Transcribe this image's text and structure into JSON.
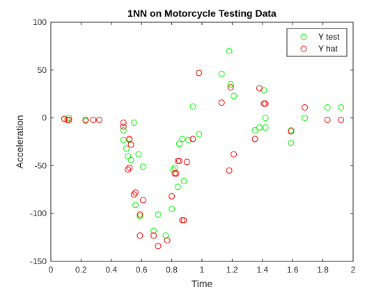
{
  "chart_data": {
    "type": "scatter",
    "title": "1NN on Motorcycle Testing Data",
    "xlabel": "Time",
    "ylabel": "Acceleration",
    "xlim": [
      0,
      2
    ],
    "ylim": [
      -150,
      100
    ],
    "xticks": [
      0,
      0.2,
      0.4,
      0.6,
      0.8,
      1,
      1.2,
      1.4,
      1.6,
      1.8,
      2
    ],
    "xtick_labels": [
      "0",
      "0.2",
      "0.4",
      "0.6",
      "0.8",
      "1",
      "1.2",
      "1.4",
      "1.6",
      "1.8",
      "2"
    ],
    "yticks": [
      -150,
      -100,
      -50,
      0,
      50,
      100
    ],
    "ytick_labels": [
      "-150",
      "-100",
      "-50",
      "0",
      "50",
      "100"
    ],
    "grid": false,
    "legend": "top-right",
    "series": [
      {
        "name": "Y test",
        "color": "#00ff00",
        "marker": "circle-open",
        "points": [
          [
            0.09,
            -1
          ],
          [
            0.12,
            0
          ],
          [
            0.23,
            -3
          ],
          [
            0.48,
            -13
          ],
          [
            0.48,
            -23
          ],
          [
            0.5,
            -32
          ],
          [
            0.51,
            -40
          ],
          [
            0.52,
            -23
          ],
          [
            0.53,
            -44
          ],
          [
            0.55,
            -5
          ],
          [
            0.56,
            -91
          ],
          [
            0.58,
            -38
          ],
          [
            0.59,
            -103
          ],
          [
            0.61,
            -51
          ],
          [
            0.68,
            -118
          ],
          [
            0.71,
            -101
          ],
          [
            0.76,
            -123
          ],
          [
            0.8,
            -95
          ],
          [
            0.81,
            -54
          ],
          [
            0.82,
            -52
          ],
          [
            0.84,
            -72
          ],
          [
            0.85,
            -27
          ],
          [
            0.87,
            -22
          ],
          [
            0.88,
            -66
          ],
          [
            0.91,
            -23
          ],
          [
            0.94,
            12
          ],
          [
            0.98,
            -17
          ],
          [
            1.13,
            46
          ],
          [
            1.18,
            70
          ],
          [
            1.19,
            35
          ],
          [
            1.21,
            23
          ],
          [
            1.35,
            -13
          ],
          [
            1.38,
            -10
          ],
          [
            1.41,
            29
          ],
          [
            1.42,
            0
          ],
          [
            1.42,
            -10
          ],
          [
            1.59,
            -13
          ],
          [
            1.59,
            -26
          ],
          [
            1.68,
            0
          ],
          [
            1.83,
            11
          ],
          [
            1.92,
            11
          ]
        ]
      },
      {
        "name": "Y hat",
        "color": "#ff0000",
        "marker": "circle-open",
        "points": [
          [
            0.09,
            -1
          ],
          [
            0.11,
            -2
          ],
          [
            0.12,
            -2
          ],
          [
            0.23,
            -2
          ],
          [
            0.28,
            -2
          ],
          [
            0.32,
            -2
          ],
          [
            0.48,
            -5
          ],
          [
            0.48,
            -9
          ],
          [
            0.51,
            -54
          ],
          [
            0.52,
            -22
          ],
          [
            0.52,
            -52
          ],
          [
            0.53,
            -28
          ],
          [
            0.55,
            -80
          ],
          [
            0.56,
            -78
          ],
          [
            0.59,
            -123
          ],
          [
            0.59,
            -101
          ],
          [
            0.61,
            -86
          ],
          [
            0.68,
            -123
          ],
          [
            0.71,
            -134
          ],
          [
            0.77,
            -128
          ],
          [
            0.8,
            -82
          ],
          [
            0.82,
            -58
          ],
          [
            0.83,
            -58
          ],
          [
            0.84,
            -45
          ],
          [
            0.85,
            -45
          ],
          [
            0.87,
            -107
          ],
          [
            0.88,
            -107
          ],
          [
            0.9,
            -46
          ],
          [
            0.94,
            -22
          ],
          [
            0.98,
            47
          ],
          [
            1.13,
            16
          ],
          [
            1.18,
            -55
          ],
          [
            1.19,
            32
          ],
          [
            1.21,
            -38
          ],
          [
            1.35,
            -22
          ],
          [
            1.38,
            31
          ],
          [
            1.41,
            15
          ],
          [
            1.42,
            15
          ],
          [
            1.59,
            -14
          ],
          [
            1.68,
            11
          ],
          [
            1.83,
            -2
          ],
          [
            1.92,
            -2
          ]
        ]
      }
    ]
  }
}
